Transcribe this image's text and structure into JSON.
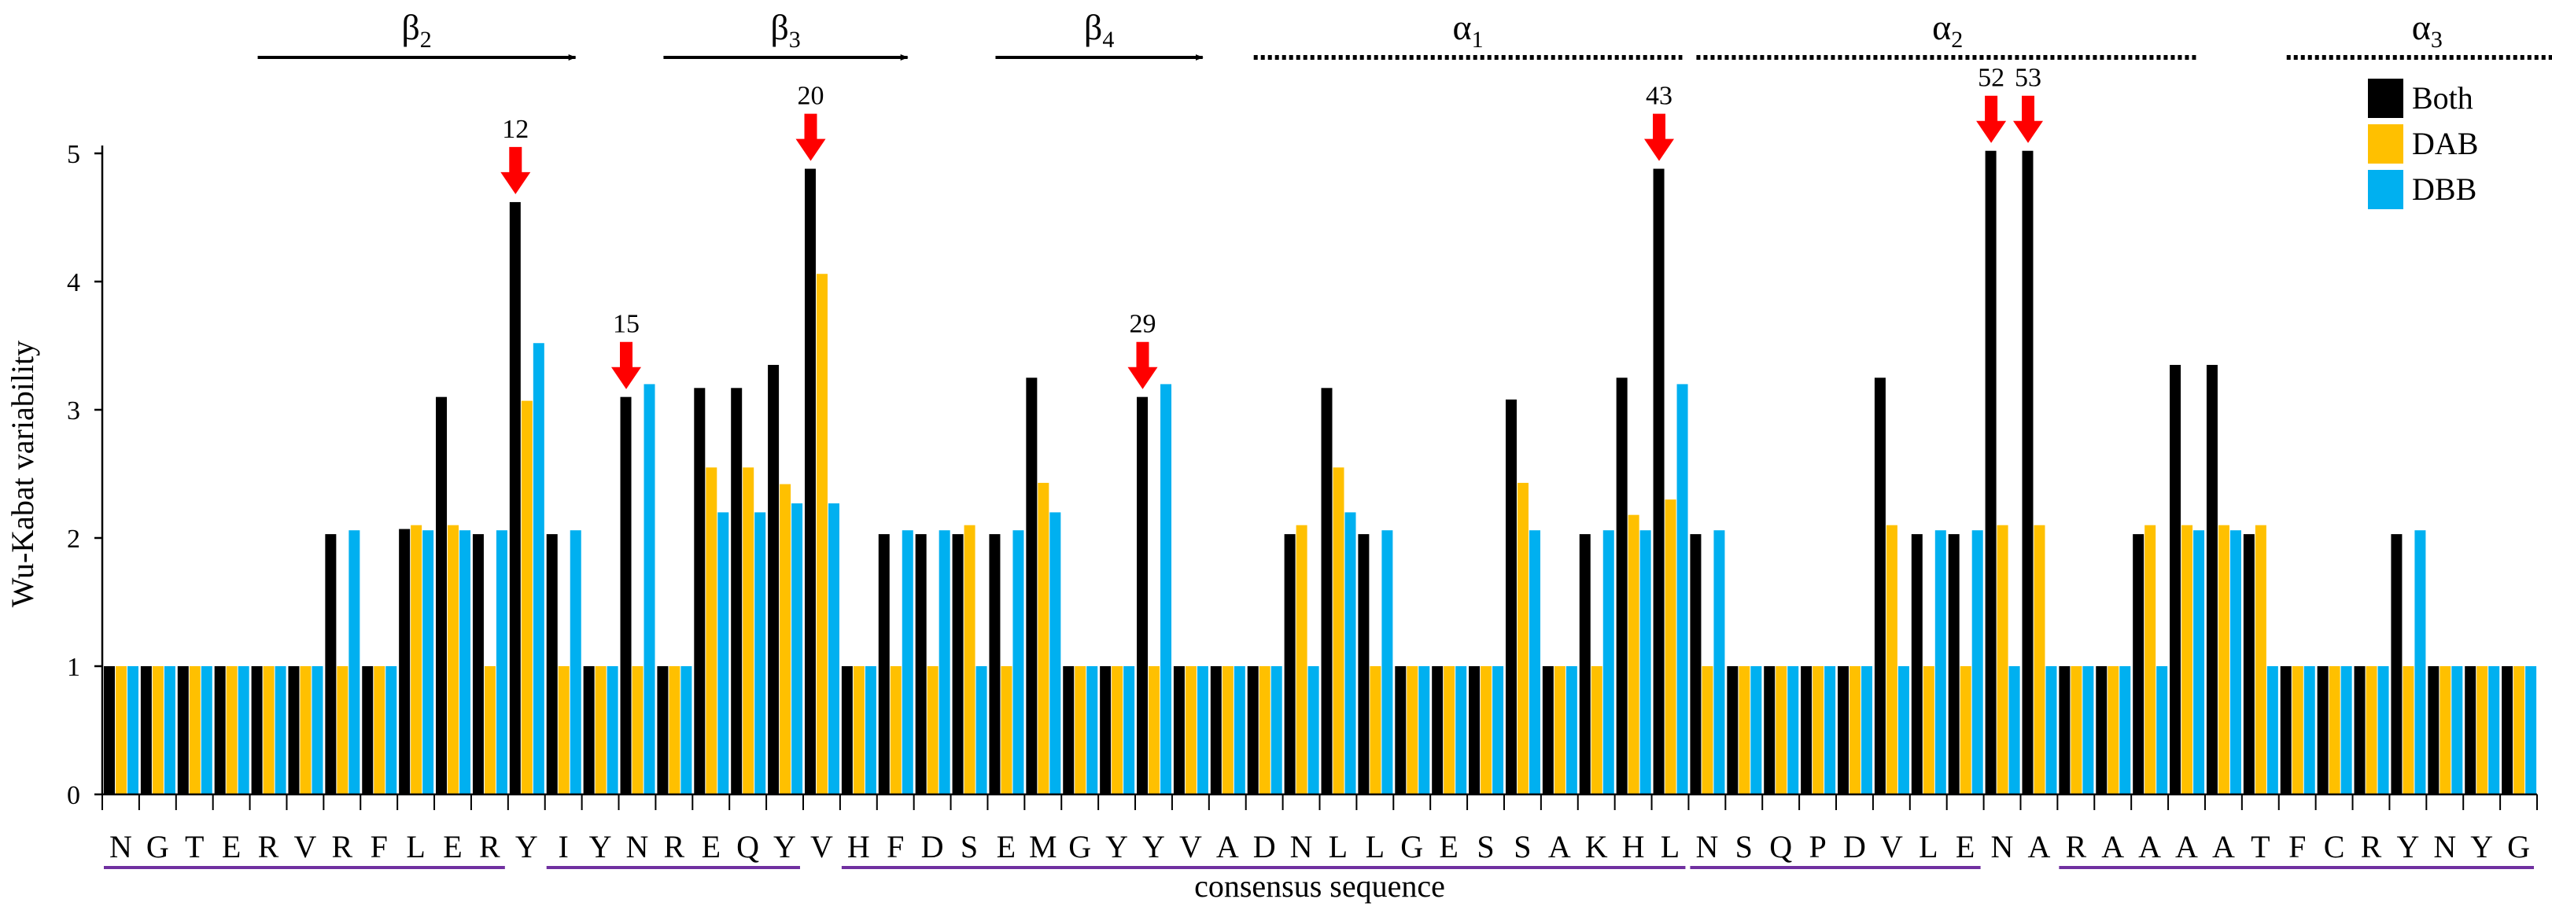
{
  "chart_data": {
    "type": "bar",
    "title": "",
    "xlabel": "consensus sequence",
    "ylabel": "Wu-Kabat variability",
    "ylim": [
      0,
      5
    ],
    "yticks": [
      "0",
      "1",
      "2",
      "3",
      "4",
      "5"
    ],
    "categories": [
      "N",
      "G",
      "T",
      "E",
      "R",
      "V",
      "R",
      "F",
      "L",
      "E",
      "R",
      "Y",
      "I",
      "Y",
      "N",
      "R",
      "E",
      "Q",
      "Y",
      "V",
      "H",
      "F",
      "D",
      "S",
      "E",
      "M",
      "G",
      "Y",
      "Y",
      "V",
      "A",
      "D",
      "N",
      "L",
      "L",
      "G",
      "E",
      "S",
      "S",
      "A",
      "K",
      "H",
      "L",
      "N",
      "S",
      "Q",
      "P",
      "D",
      "V",
      "L",
      "E",
      "N",
      "A",
      "R",
      "A",
      "A",
      "A",
      "A",
      "T",
      "F",
      "C",
      "R",
      "Y",
      "N",
      "Y",
      "G"
    ],
    "series": [
      {
        "name": "Both",
        "color": "#000000",
        "values": [
          1,
          1,
          1,
          1,
          1,
          1,
          2.03,
          1,
          2.07,
          3.1,
          2.03,
          4.62,
          2.03,
          1,
          3.1,
          1,
          3.17,
          3.17,
          3.35,
          4.88,
          1,
          2.03,
          2.03,
          2.03,
          2.03,
          3.25,
          1,
          1,
          3.1,
          1,
          1,
          1,
          2.03,
          3.17,
          2.03,
          1,
          1,
          1,
          3.08,
          1,
          2.03,
          3.25,
          4.88,
          2.03,
          1,
          1,
          1,
          1,
          3.25,
          2.03,
          2.03,
          5.02,
          5.02,
          1,
          1,
          2.03,
          3.35,
          3.35,
          2.03,
          1,
          1,
          1,
          2.03,
          1,
          1,
          1
        ]
      },
      {
        "name": "DAB",
        "color": "#FFC000",
        "values": [
          1,
          1,
          1,
          1,
          1,
          1,
          1,
          1,
          2.1,
          2.1,
          1,
          3.07,
          1,
          1,
          1,
          1,
          2.55,
          2.55,
          2.42,
          4.06,
          1,
          1,
          1,
          2.1,
          1,
          2.43,
          1,
          1,
          1,
          1,
          1,
          1,
          2.1,
          2.55,
          1,
          1,
          1,
          1,
          2.43,
          1,
          1,
          2.18,
          2.3,
          1,
          1,
          1,
          1,
          1,
          2.1,
          1,
          1,
          2.1,
          2.1,
          1,
          1,
          2.1,
          2.1,
          2.1,
          2.1,
          1,
          1,
          1,
          1,
          1,
          1,
          1
        ]
      },
      {
        "name": "DBB",
        "color": "#00B0F0",
        "values": [
          1,
          1,
          1,
          1,
          1,
          1,
          2.06,
          1,
          2.06,
          2.06,
          2.06,
          3.52,
          2.06,
          1,
          3.2,
          1,
          2.2,
          2.2,
          2.27,
          2.27,
          1,
          2.06,
          2.06,
          1,
          2.06,
          2.2,
          1,
          1,
          3.2,
          1,
          1,
          1,
          1,
          2.2,
          2.06,
          1,
          1,
          1,
          2.06,
          1,
          2.06,
          2.06,
          3.2,
          2.06,
          1,
          1,
          1,
          1,
          1,
          2.06,
          2.06,
          1,
          1,
          1,
          1,
          1,
          2.06,
          2.06,
          1,
          1,
          1,
          1,
          2.06,
          1,
          1,
          1
        ]
      }
    ],
    "legend_position": "top-right",
    "grid": false,
    "annotations": [
      {
        "label": "12",
        "category_index": 11
      },
      {
        "label": "15",
        "category_index": 14
      },
      {
        "label": "20",
        "category_index": 19
      },
      {
        "label": "29",
        "category_index": 28
      },
      {
        "label": "43",
        "category_index": 42
      },
      {
        "label": "52",
        "category_index": 51
      },
      {
        "label": "53",
        "category_index": 52
      }
    ],
    "secondary_structure": [
      {
        "label": "β",
        "sub": "2",
        "kind": "strand",
        "start": 4,
        "end": 12
      },
      {
        "label": "β",
        "sub": "3",
        "kind": "strand",
        "start": 15,
        "end": 21
      },
      {
        "label": "β",
        "sub": "4",
        "kind": "strand",
        "start": 24,
        "end": 29
      },
      {
        "label": "α",
        "sub": "1",
        "kind": "helix",
        "start": 31,
        "end": 42
      },
      {
        "label": "α",
        "sub": "2",
        "kind": "helix",
        "start": 43,
        "end": 56
      },
      {
        "label": "α",
        "sub": "3",
        "kind": "helix",
        "start": 59,
        "end": 66
      }
    ],
    "sequence_groups": [
      {
        "start": 0,
        "end": 10
      },
      {
        "start": 12,
        "end": 18
      },
      {
        "start": 20,
        "end": 42
      },
      {
        "start": 43,
        "end": 50
      },
      {
        "start": 53,
        "end": 65
      }
    ]
  }
}
